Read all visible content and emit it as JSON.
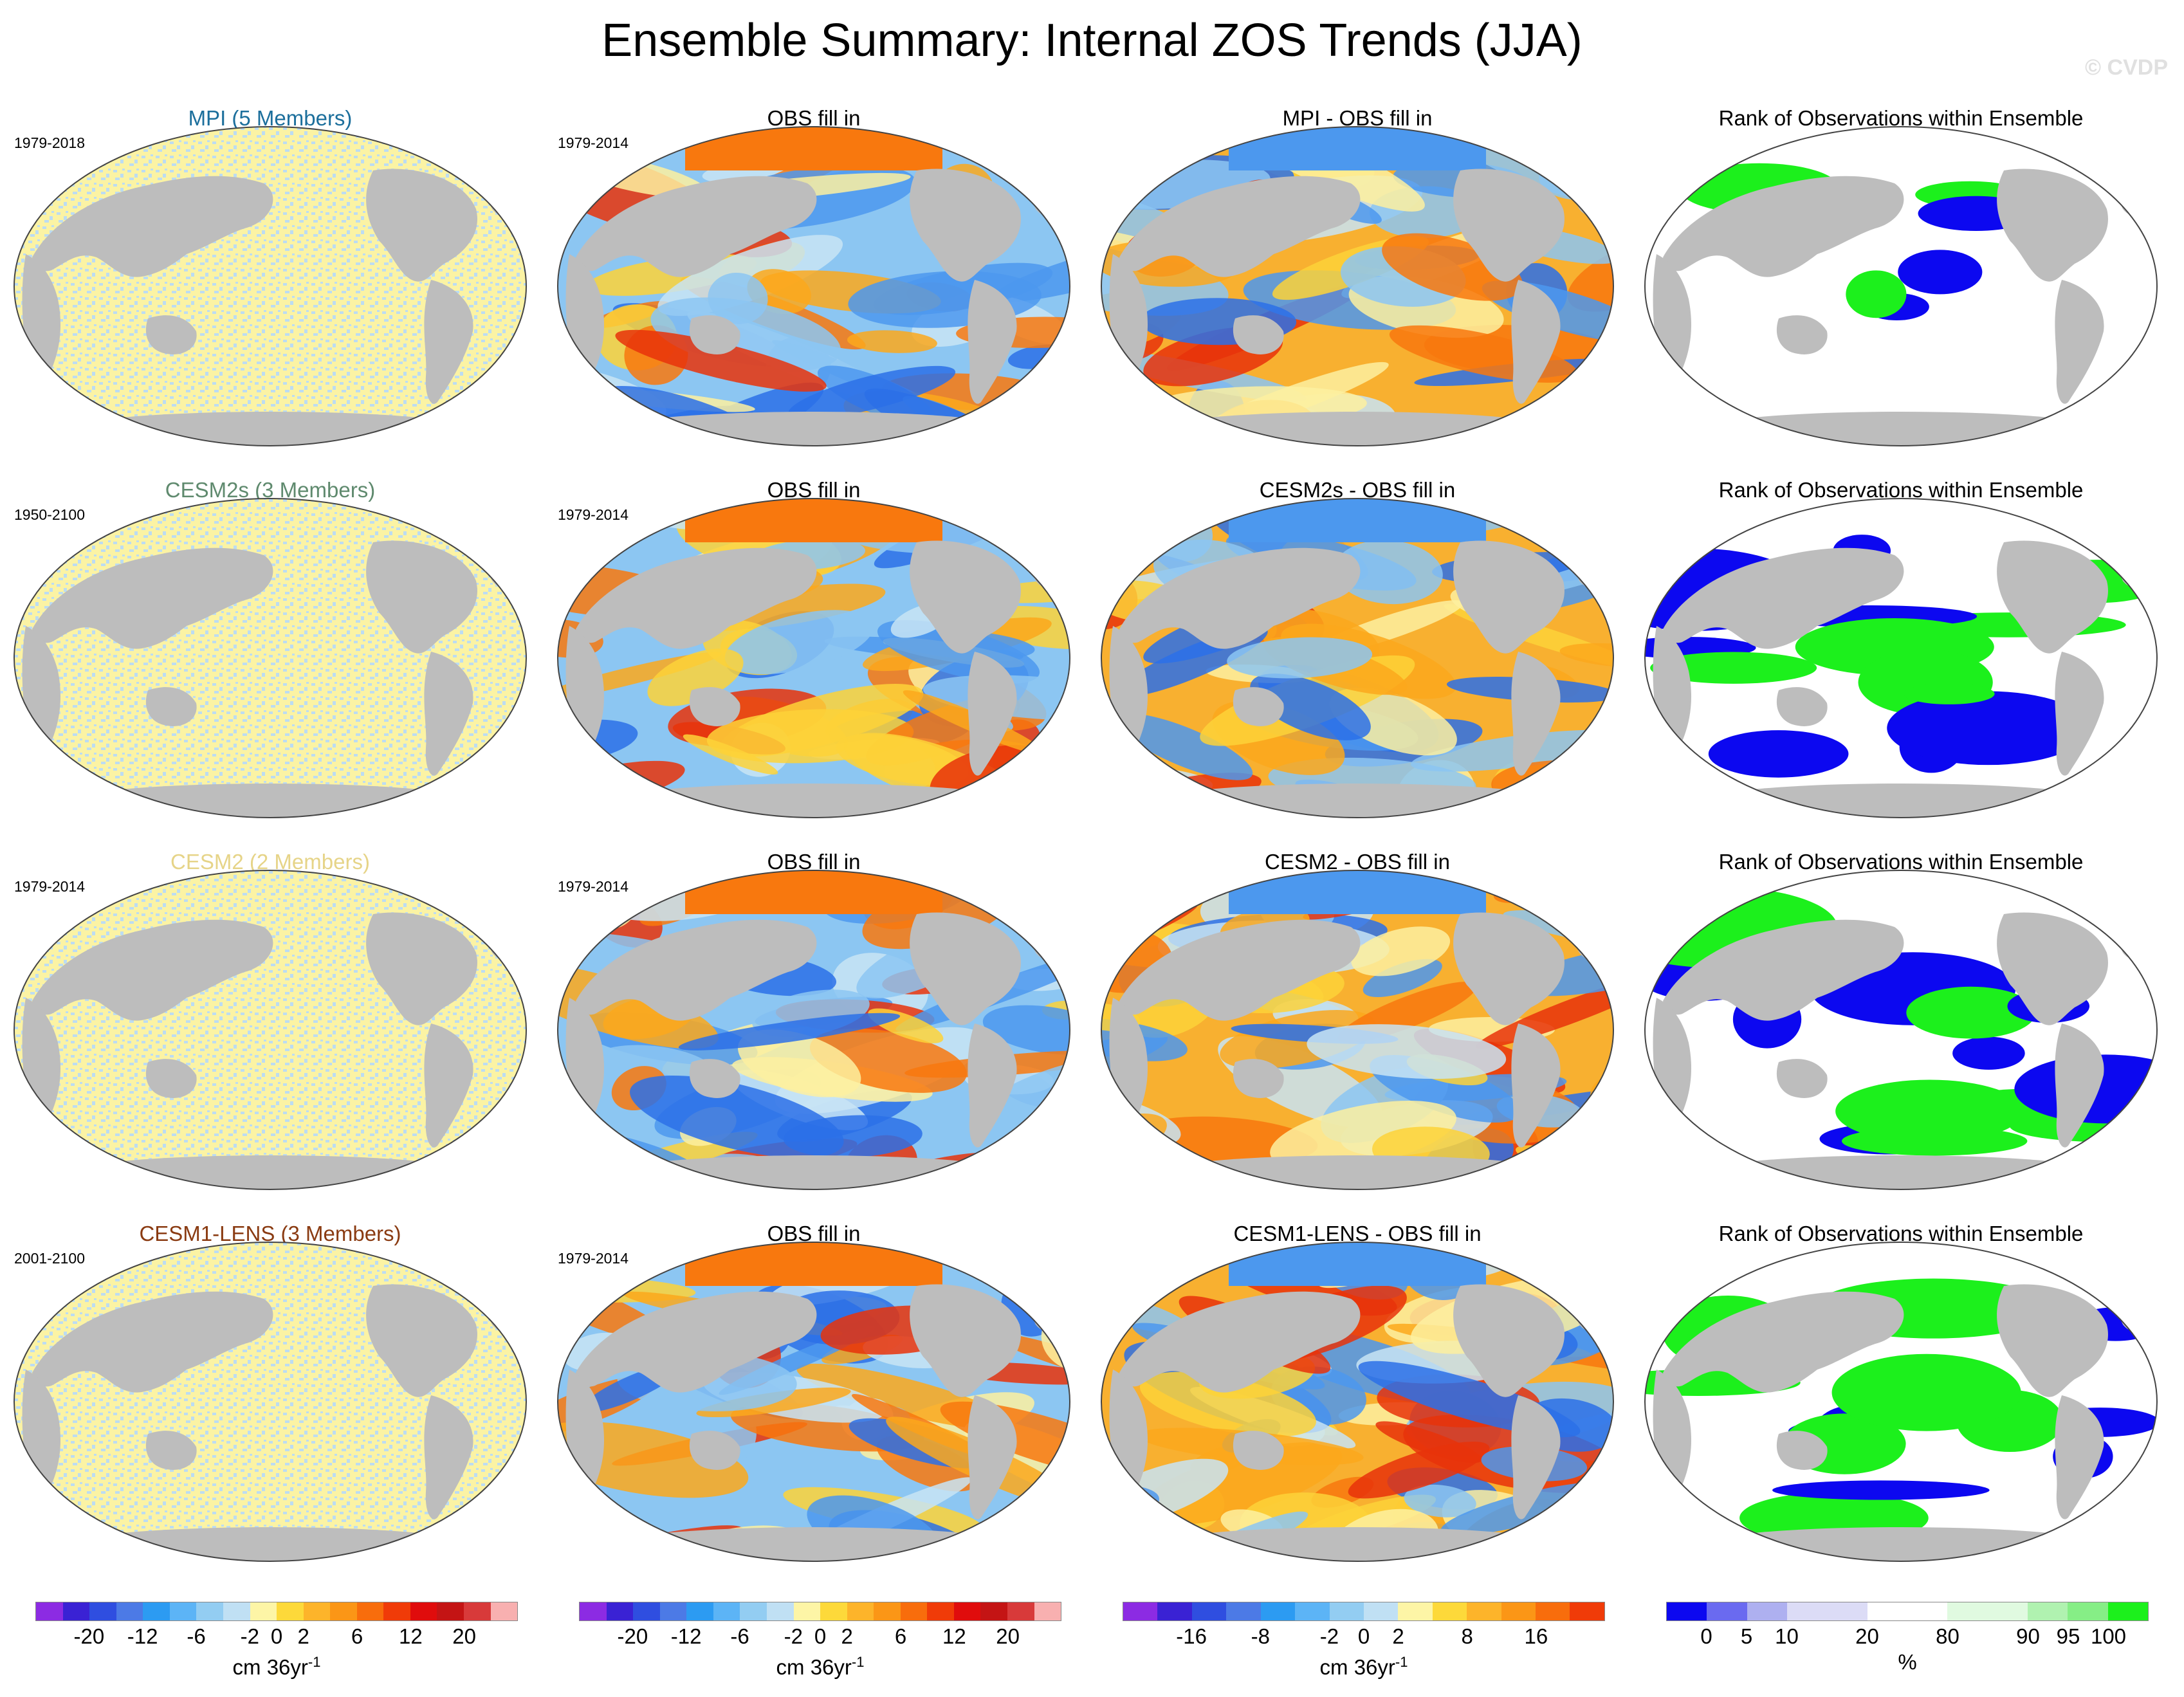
{
  "title": "Ensemble Summary: Internal ZOS Trends (JJA)",
  "watermark": "© CVDP",
  "rows": [
    {
      "model": "MPI (5 Members)",
      "model_color": "#1c6f9c",
      "period": "1979-2018",
      "obs_period": "1979-2014",
      "obs_title": "OBS fill in",
      "diff_title": "MPI - OBS fill in",
      "rank_title": "Rank of Observations within Ensemble"
    },
    {
      "model": "CESM2s (3 Members)",
      "model_color": "#5f8a6e",
      "period": "1950-2100",
      "obs_period": "1979-2014",
      "obs_title": "OBS fill in",
      "diff_title": "CESM2s - OBS fill in",
      "rank_title": "Rank of Observations within Ensemble"
    },
    {
      "model": "CESM2 (2 Members)",
      "model_color": "#e6d488",
      "period": "1979-2014",
      "obs_period": "1979-2014",
      "obs_title": "OBS fill in",
      "diff_title": "CESM2 - OBS fill in",
      "rank_title": "Rank of Observations within Ensemble"
    },
    {
      "model": "CESM1-LENS (3 Members)",
      "model_color": "#8a3b12",
      "period": "2001-2100",
      "obs_period": "1979-2014",
      "obs_title": "OBS fill in",
      "diff_title": "CESM1-LENS - OBS fill in",
      "rank_title": "Rank of Observations within Ensemble"
    }
  ],
  "colorbars": [
    {
      "colors": [
        "#8c2be3",
        "#3a22d4",
        "#2f4ee0",
        "#4c7ae6",
        "#2c9bf2",
        "#5cb4f6",
        "#93cdf2",
        "#c0e0f4",
        "#fdf5a6",
        "#fdd93a",
        "#fdb42a",
        "#fb9616",
        "#f86d0c",
        "#f03b08",
        "#e00c0c",
        "#c41414",
        "#d83a3a",
        "#f8b0b0"
      ],
      "ticks": [
        "-20",
        "-12",
        "-6",
        "-2",
        "0",
        "2",
        "6",
        "12",
        "20"
      ],
      "tick_pos": [
        2,
        4,
        6,
        8,
        9,
        10,
        12,
        14,
        16
      ],
      "unit": "cm 36yr",
      "unit_sup": "-1"
    },
    {
      "colors": [
        "#8c2be3",
        "#3a22d4",
        "#2f4ee0",
        "#4c7ae6",
        "#2c9bf2",
        "#5cb4f6",
        "#93cdf2",
        "#c0e0f4",
        "#fdf5a6",
        "#fdd93a",
        "#fdb42a",
        "#fb9616",
        "#f86d0c",
        "#f03b08",
        "#e00c0c",
        "#c41414",
        "#d83a3a",
        "#f8b0b0"
      ],
      "ticks": [
        "-20",
        "-12",
        "-6",
        "-2",
        "0",
        "2",
        "6",
        "12",
        "20"
      ],
      "tick_pos": [
        2,
        4,
        6,
        8,
        9,
        10,
        12,
        14,
        16
      ],
      "unit": "cm 36yr",
      "unit_sup": "-1"
    },
    {
      "colors": [
        "#8c2be3",
        "#3a22d4",
        "#2f4ee0",
        "#4c7ae6",
        "#2c9bf2",
        "#5cb4f6",
        "#93cdf2",
        "#c0e0f4",
        "#fdf5a6",
        "#fdd93a",
        "#fdb42a",
        "#fb9616",
        "#f86d0c",
        "#f03b08",
        "#e00c0c",
        "#c41414",
        "#d83a3a",
        "#f8b0b0"
      ],
      "ticks": [
        "-16",
        "-8",
        "-2",
        "0",
        "2",
        "8",
        "16"
      ],
      "tick_pos": [
        2,
        4,
        6,
        7,
        8,
        10,
        12
      ],
      "nbins": 14,
      "unit": "cm 36yr",
      "unit_sup": "-1"
    },
    {
      "colors": [
        "#0c08f0",
        "#6a6af0",
        "#aeb0f0",
        "#dcdcf6",
        "#dcdcf6",
        "#ffffff",
        "#ffffff",
        "#e0fae0",
        "#e0fae0",
        "#b0f2b0",
        "#86ee86",
        "#1cf01c"
      ],
      "ticks": [
        "0",
        "5",
        "10",
        "20",
        "80",
        "90",
        "95",
        "100"
      ],
      "tick_pos": [
        1,
        2,
        3,
        5,
        7,
        9,
        10,
        11
      ],
      "nbins": 12,
      "unit": "%",
      "unit_sup": ""
    }
  ]
}
